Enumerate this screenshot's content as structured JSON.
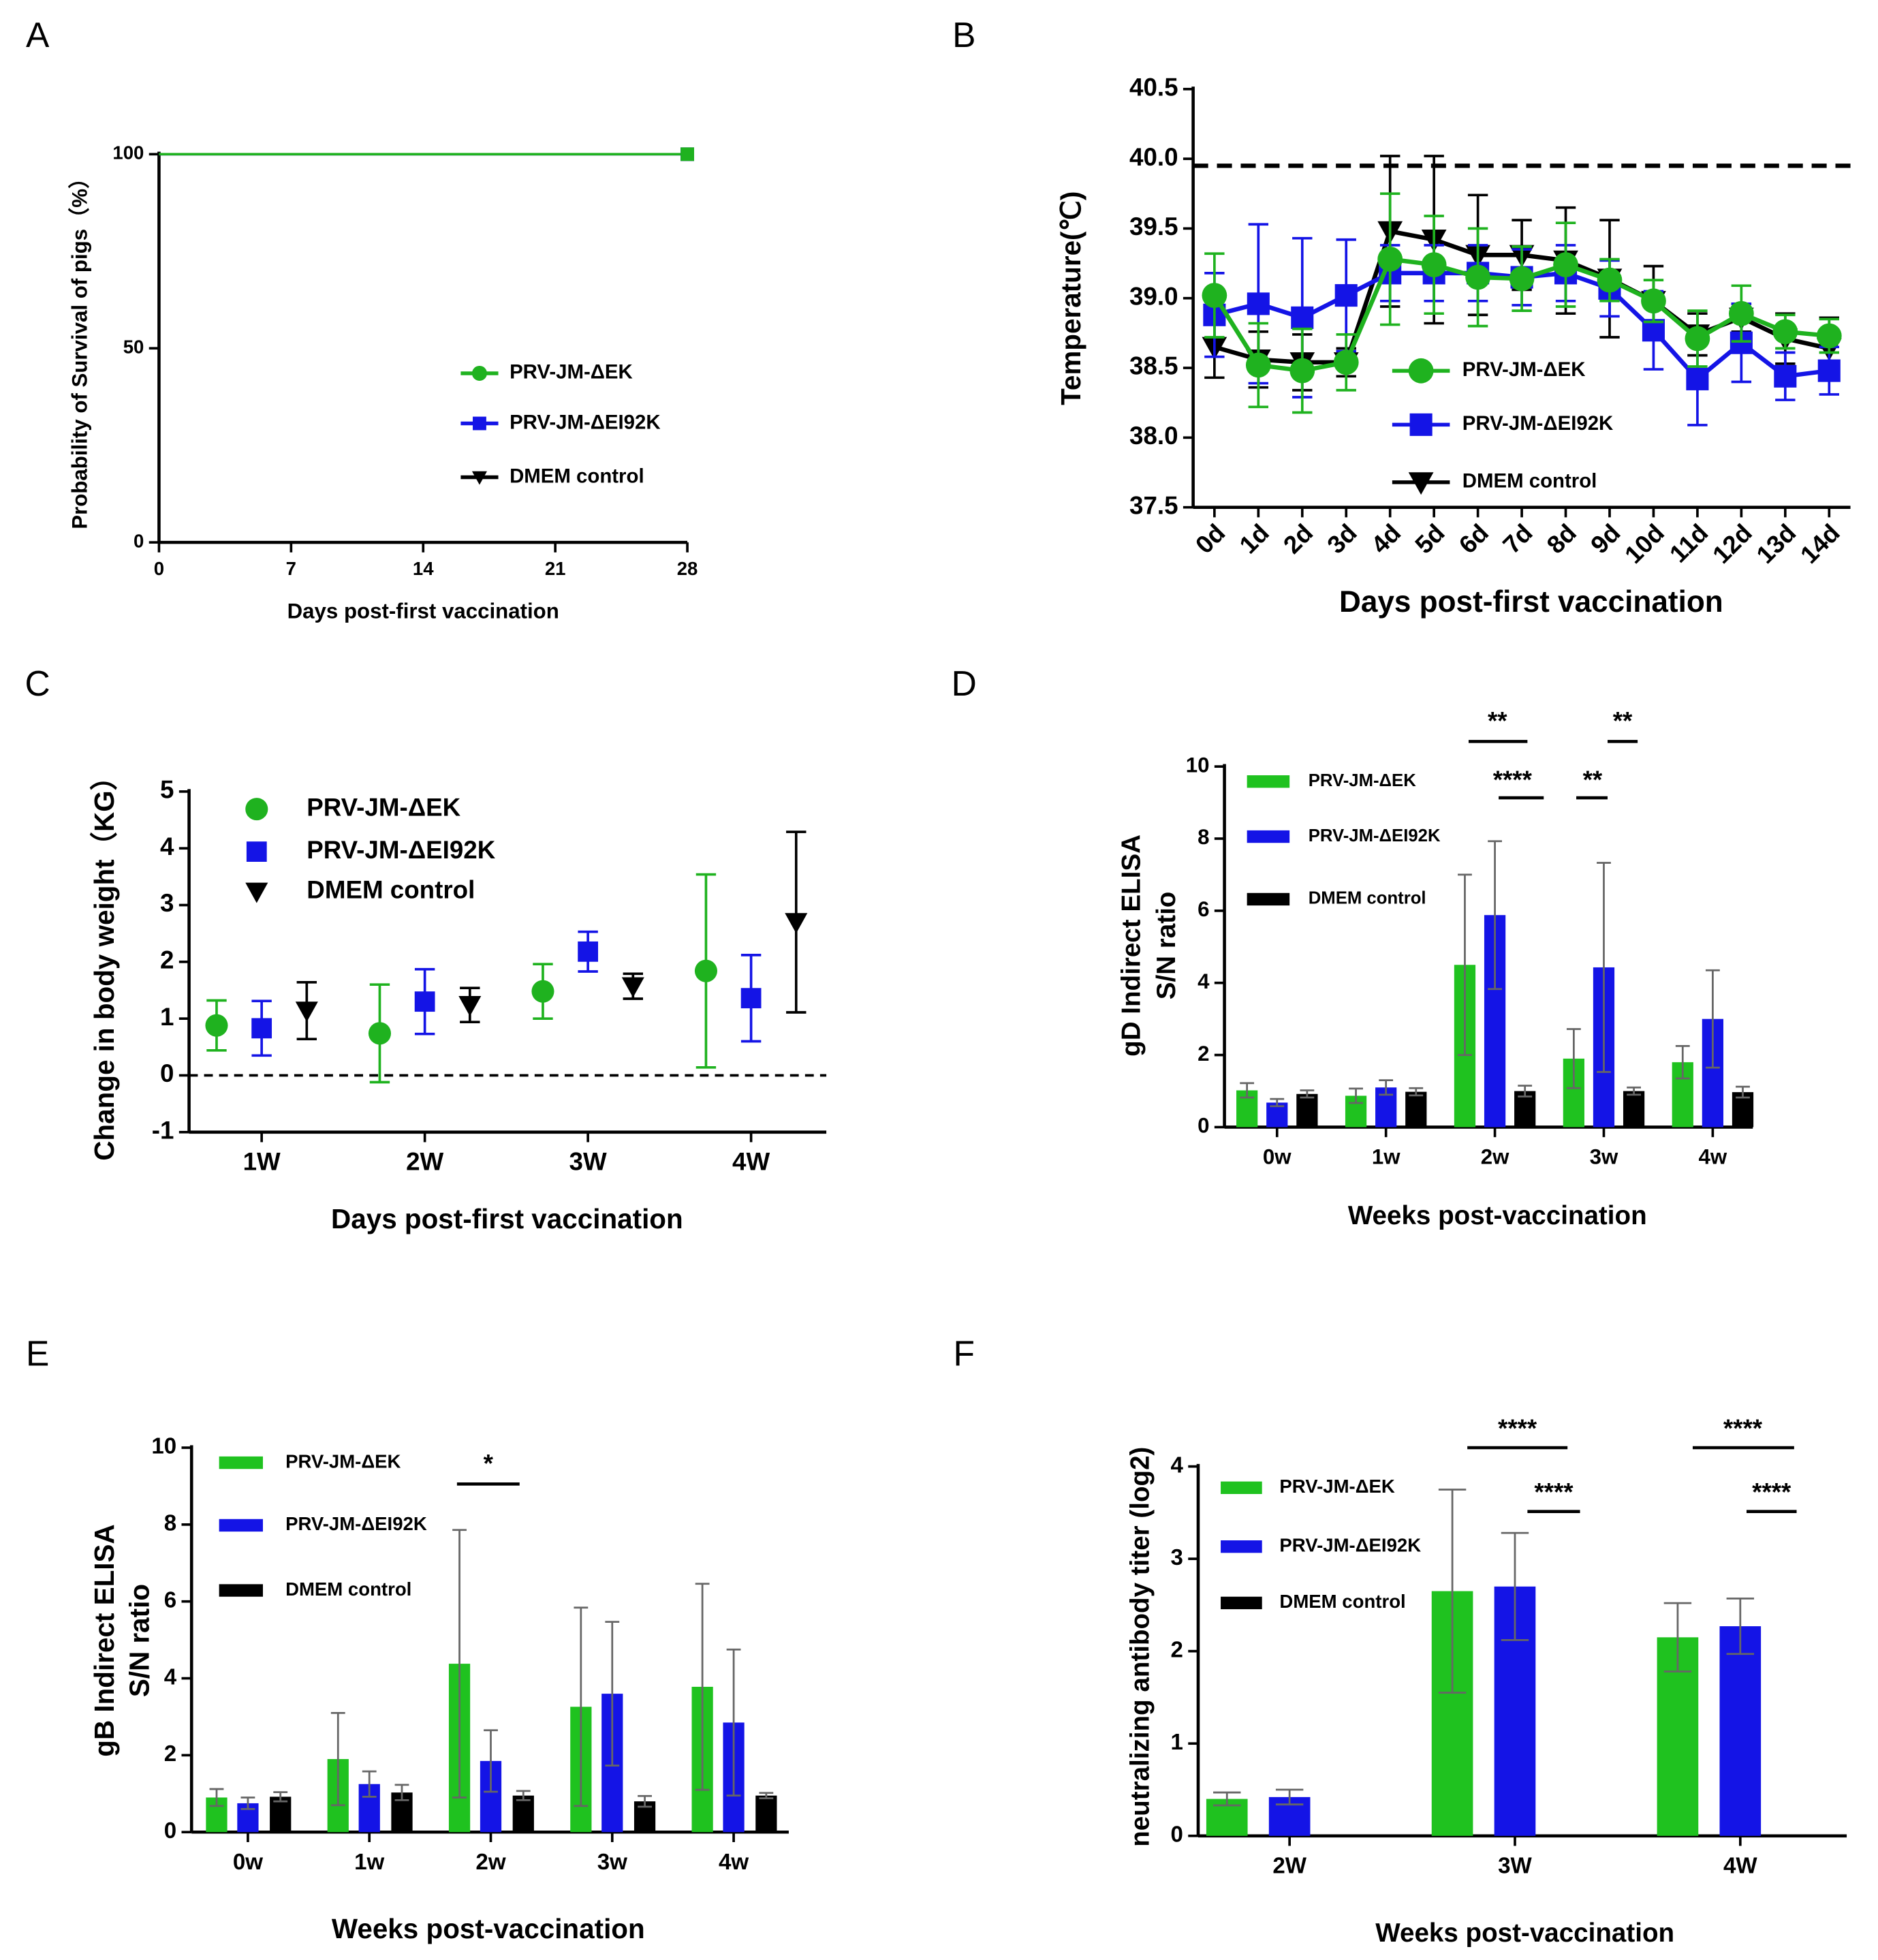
{
  "chart_data": [
    {
      "panel": "A",
      "type": "survival",
      "xlabel": "Days post-first vaccination",
      "ylabel": "Probability of Survival of pigs（%）",
      "x": [
        0,
        28
      ],
      "xlim": [
        0,
        28
      ],
      "xticks": [
        0,
        7,
        14,
        21,
        28
      ],
      "ylim": [
        0,
        100
      ],
      "yticks": [
        0,
        50,
        100
      ],
      "series": [
        {
          "name": "PRV-JM-ΔEK",
          "color": "#1fb21f",
          "values": [
            100,
            100
          ]
        },
        {
          "name": "PRV-JM-ΔEI92K",
          "color": "#1414e6",
          "values": [
            100,
            100
          ]
        },
        {
          "name": "DMEM control",
          "color": "#000000",
          "values": [
            100,
            100
          ]
        }
      ]
    },
    {
      "panel": "B",
      "type": "line",
      "xlabel": "Days post-first vaccination",
      "ylabel": "Temperature(℃)",
      "categories": [
        "0d",
        "1d",
        "2d",
        "3d",
        "4d",
        "5d",
        "6d",
        "7d",
        "8d",
        "9d",
        "10d",
        "11d",
        "12d",
        "13d",
        "14d"
      ],
      "ylim": [
        37.5,
        40.5
      ],
      "yticks": [
        37.5,
        {
          "value": 38,
          "label": "38.0"
        },
        38.5,
        {
          "value": 39,
          "label": "39.0"
        },
        39.5,
        {
          "value": 40,
          "label": "40.0"
        },
        40.5
      ],
      "reference_line": 39.95,
      "series": [
        {
          "name": "PRV-JM-ΔEK",
          "color": "#1fb21f",
          "values": [
            39.02,
            38.52,
            38.48,
            38.54,
            39.28,
            39.24,
            39.15,
            39.14,
            39.24,
            39.13,
            38.98,
            38.71,
            38.89,
            38.76,
            38.73
          ],
          "errors": [
            0.3,
            0.3,
            0.3,
            0.2,
            0.47,
            0.35,
            0.35,
            0.23,
            0.3,
            0.15,
            0.15,
            0.2,
            0.2,
            0.12,
            0.12
          ]
        },
        {
          "name": "PRV-JM-ΔEI92K",
          "color": "#1414e6",
          "values": [
            38.88,
            38.96,
            38.86,
            39.02,
            39.18,
            39.18,
            39.18,
            39.15,
            39.18,
            39.07,
            38.77,
            38.42,
            38.68,
            38.44,
            38.48
          ],
          "errors": [
            0.3,
            0.57,
            0.57,
            0.4,
            0.2,
            0.2,
            0.2,
            0.2,
            0.2,
            0.2,
            0.28,
            0.33,
            0.28,
            0.17,
            0.17
          ]
        },
        {
          "name": "DMEM control",
          "color": "#000000",
          "values": [
            38.65,
            38.56,
            38.54,
            38.54,
            39.48,
            39.42,
            39.31,
            39.31,
            39.27,
            39.14,
            38.98,
            38.74,
            38.86,
            38.71,
            38.64
          ],
          "errors": [
            0.22,
            0.2,
            0.2,
            0.1,
            0.54,
            0.6,
            0.43,
            0.25,
            0.38,
            0.42,
            0.25,
            0.15,
            0.1,
            0.18,
            0.22
          ]
        }
      ]
    },
    {
      "panel": "C",
      "type": "dot",
      "xlabel": "Days post-first vaccination",
      "ylabel": "Change in body weight（KG）",
      "categories": [
        "1W",
        "2W",
        "3W",
        "4W"
      ],
      "ylim": [
        -1,
        5
      ],
      "yticks": [
        -1,
        0,
        1,
        2,
        3,
        4,
        5
      ],
      "reference_line": 0,
      "series": [
        {
          "name": "PRV-JM-ΔEK",
          "color": "#1fb21f",
          "values": [
            0.88,
            0.74,
            1.48,
            1.84
          ],
          "errors": [
            0.44,
            0.86,
            0.48,
            1.7
          ]
        },
        {
          "name": "PRV-JM-ΔEI92K",
          "color": "#1414e6",
          "values": [
            0.83,
            1.3,
            2.18,
            1.36
          ],
          "errors": [
            0.48,
            0.57,
            0.35,
            0.76
          ]
        },
        {
          "name": "DMEM control",
          "color": "#000000",
          "values": [
            1.14,
            1.24,
            1.57,
            2.7
          ],
          "errors": [
            0.5,
            0.3,
            0.22,
            1.59
          ]
        }
      ]
    },
    {
      "panel": "D",
      "type": "bar",
      "xlabel": "Weeks post-vaccination",
      "ylabel": [
        "gD Indirect ELISA",
        "S/N ratio"
      ],
      "categories": [
        "0w",
        "1w",
        "2w",
        "3w",
        "4w"
      ],
      "ylim": [
        0,
        10
      ],
      "yticks": [
        0,
        2,
        4,
        6,
        8,
        10
      ],
      "annotations": [
        "**",
        "****",
        "**",
        "**"
      ],
      "series": [
        {
          "name": "PRV-JM-ΔEK",
          "color": "#1fc21f",
          "values": [
            1.02,
            0.87,
            4.5,
            1.9,
            1.8
          ],
          "errors": [
            0.2,
            0.2,
            2.5,
            0.82,
            0.45
          ]
        },
        {
          "name": "PRV-JM-ΔEI92K",
          "color": "#1414e6",
          "values": [
            0.68,
            1.1,
            5.88,
            4.43,
            3.0
          ],
          "errors": [
            0.1,
            0.2,
            2.05,
            2.9,
            1.35
          ]
        },
        {
          "name": "DMEM control",
          "color": "#000000",
          "values": [
            0.92,
            0.98,
            1.0,
            1.0,
            0.97
          ],
          "errors": [
            0.1,
            0.1,
            0.15,
            0.1,
            0.15
          ]
        }
      ]
    },
    {
      "panel": "E",
      "type": "bar",
      "xlabel": "Weeks post-vaccination",
      "ylabel": [
        "gB Indirect ELISA",
        "S/N ratio"
      ],
      "categories": [
        "0w",
        "1w",
        "2w",
        "3w",
        "4w"
      ],
      "ylim": [
        0,
        10
      ],
      "yticks": [
        0,
        2,
        4,
        6,
        8,
        10
      ],
      "annotations": [
        "*"
      ],
      "series": [
        {
          "name": "PRV-JM-ΔEK",
          "color": "#1fc21f",
          "values": [
            0.9,
            1.9,
            4.38,
            3.26,
            3.78
          ],
          "errors": [
            0.22,
            1.2,
            3.48,
            2.58,
            2.68
          ]
        },
        {
          "name": "PRV-JM-ΔEI92K",
          "color": "#1414e6",
          "values": [
            0.75,
            1.25,
            1.85,
            3.6,
            2.85
          ],
          "errors": [
            0.15,
            0.33,
            0.8,
            1.87,
            1.9
          ]
        },
        {
          "name": "DMEM control",
          "color": "#000000",
          "values": [
            0.92,
            1.03,
            0.95,
            0.8,
            0.95
          ],
          "errors": [
            0.12,
            0.2,
            0.12,
            0.14,
            0.07
          ]
        }
      ]
    },
    {
      "panel": "F",
      "type": "bar",
      "xlabel": "Weeks post-vaccination",
      "ylabel": "neutralizing antibody titer (log2)",
      "categories": [
        "2W",
        "3W",
        "4W"
      ],
      "ylim": [
        0,
        4
      ],
      "yticks": [
        0,
        1,
        2,
        3,
        4
      ],
      "annotations": [
        "****",
        "****",
        "****",
        "****"
      ],
      "series": [
        {
          "name": "PRV-JM-ΔEK",
          "color": "#1fc21f",
          "values": [
            0.4,
            2.65,
            2.15
          ],
          "errors": [
            0.07,
            1.1,
            0.37
          ]
        },
        {
          "name": "PRV-JM-ΔEI92K",
          "color": "#1414e6",
          "values": [
            0.42,
            2.7,
            2.27
          ],
          "errors": [
            0.08,
            0.58,
            0.3
          ]
        },
        {
          "name": "DMEM control",
          "color": "#000000",
          "values": [
            null,
            null,
            null
          ],
          "errors": [
            null,
            null,
            null
          ]
        }
      ]
    }
  ]
}
